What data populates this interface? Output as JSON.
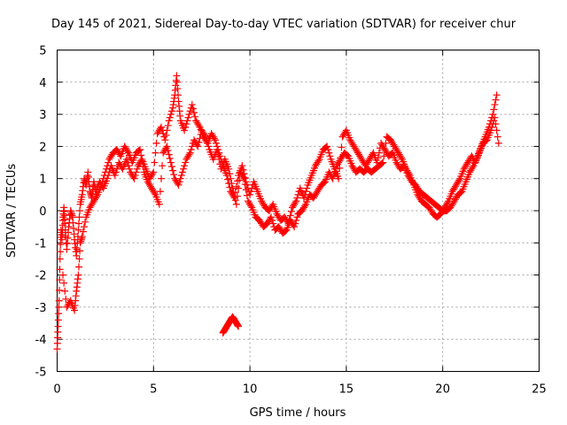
{
  "chart_data": {
    "type": "scatter",
    "title": "Day 145 of 2021, Sidereal Day-to-day VTEC variation (SDTVAR) for receiver chur",
    "xlabel": "GPS time / hours",
    "ylabel": "SDTVAR / TECUs",
    "xlim": [
      0,
      25
    ],
    "ylim": [
      -5,
      5
    ],
    "xticks": [
      0,
      5,
      10,
      15,
      20,
      25
    ],
    "yticks": [
      -5,
      -4,
      -3,
      -2,
      -1,
      0,
      1,
      2,
      3,
      4,
      5
    ],
    "grid": true,
    "marker": "+",
    "color": "#ff0000",
    "series": [
      {
        "name": "SDTVAR",
        "points": [
          [
            0.0,
            -4.3
          ],
          [
            0.05,
            -3.6
          ],
          [
            0.1,
            -2.8
          ],
          [
            0.15,
            -1.5
          ],
          [
            0.2,
            -0.6
          ],
          [
            0.25,
            -0.9
          ],
          [
            0.3,
            -0.3
          ],
          [
            0.35,
            0.1
          ],
          [
            0.4,
            -0.4
          ],
          [
            0.5,
            -1.2
          ],
          [
            0.6,
            -0.5
          ],
          [
            0.7,
            0.0
          ],
          [
            0.8,
            -0.2
          ],
          [
            0.9,
            -0.9
          ],
          [
            1.0,
            -1.4
          ],
          [
            1.1,
            -0.6
          ],
          [
            1.2,
            0.2
          ],
          [
            1.3,
            0.5
          ],
          [
            1.4,
            1.0
          ],
          [
            1.5,
            0.8
          ],
          [
            1.6,
            1.2
          ],
          [
            1.7,
            0.6
          ],
          [
            1.8,
            0.4
          ],
          [
            1.9,
            0.9
          ],
          [
            2.0,
            0.6
          ],
          [
            2.2,
            0.9
          ],
          [
            2.4,
            0.7
          ],
          [
            2.6,
            1.0
          ],
          [
            2.8,
            1.4
          ],
          [
            3.0,
            1.1
          ],
          [
            3.2,
            1.5
          ],
          [
            3.4,
            1.3
          ],
          [
            3.6,
            1.6
          ],
          [
            3.8,
            1.2
          ],
          [
            4.0,
            1.0
          ],
          [
            4.2,
            1.4
          ],
          [
            4.4,
            1.6
          ],
          [
            4.6,
            1.3
          ],
          [
            4.8,
            1.0
          ],
          [
            5.0,
            1.2
          ],
          [
            5.2,
            2.4
          ],
          [
            5.4,
            2.6
          ],
          [
            5.6,
            2.2
          ],
          [
            5.8,
            2.8
          ],
          [
            6.0,
            3.2
          ],
          [
            6.1,
            3.6
          ],
          [
            6.2,
            4.2
          ],
          [
            6.3,
            3.4
          ],
          [
            6.4,
            2.8
          ],
          [
            6.6,
            2.5
          ],
          [
            6.8,
            2.9
          ],
          [
            7.0,
            3.3
          ],
          [
            7.2,
            2.8
          ],
          [
            7.4,
            2.6
          ],
          [
            7.6,
            2.3
          ],
          [
            7.8,
            2.1
          ],
          [
            8.0,
            2.4
          ],
          [
            8.2,
            2.2
          ],
          [
            8.4,
            1.8
          ],
          [
            8.6,
            1.4
          ],
          [
            8.8,
            1.1
          ],
          [
            9.0,
            0.6
          ],
          [
            9.2,
            0.4
          ],
          [
            9.4,
            1.1
          ],
          [
            9.6,
            1.4
          ],
          [
            9.8,
            0.9
          ],
          [
            10.0,
            0.5
          ],
          [
            10.2,
            0.9
          ],
          [
            10.4,
            0.6
          ],
          [
            10.6,
            0.3
          ],
          [
            10.8,
            0.1
          ],
          [
            11.0,
            0.0
          ],
          [
            11.2,
            0.2
          ],
          [
            11.4,
            -0.1
          ],
          [
            11.6,
            -0.3
          ],
          [
            11.8,
            -0.2
          ],
          [
            12.0,
            -0.4
          ],
          [
            12.2,
            0.1
          ],
          [
            12.4,
            0.3
          ],
          [
            12.6,
            0.7
          ],
          [
            12.8,
            0.4
          ],
          [
            13.0,
            0.8
          ],
          [
            13.2,
            1.1
          ],
          [
            13.4,
            1.4
          ],
          [
            13.6,
            1.6
          ],
          [
            13.8,
            1.9
          ],
          [
            14.0,
            2.0
          ],
          [
            14.2,
            1.6
          ],
          [
            14.4,
            1.3
          ],
          [
            14.6,
            1.0
          ],
          [
            14.8,
            2.3
          ],
          [
            15.0,
            2.5
          ],
          [
            15.2,
            2.2
          ],
          [
            15.4,
            2.0
          ],
          [
            15.6,
            1.8
          ],
          [
            15.8,
            1.6
          ],
          [
            16.0,
            1.4
          ],
          [
            16.2,
            1.6
          ],
          [
            16.4,
            1.8
          ],
          [
            16.6,
            1.5
          ],
          [
            16.8,
            2.1
          ],
          [
            17.0,
            1.9
          ],
          [
            17.2,
            1.7
          ],
          [
            17.4,
            1.8
          ],
          [
            17.6,
            1.5
          ],
          [
            17.8,
            1.3
          ],
          [
            18.0,
            1.4
          ],
          [
            18.2,
            1.1
          ],
          [
            18.4,
            0.9
          ],
          [
            18.6,
            0.8
          ],
          [
            18.8,
            0.6
          ],
          [
            19.0,
            0.5
          ],
          [
            19.2,
            0.4
          ],
          [
            19.4,
            0.3
          ],
          [
            19.6,
            0.2
          ],
          [
            19.8,
            0.1
          ],
          [
            20.0,
            0.0
          ],
          [
            20.2,
            0.0
          ],
          [
            20.4,
            0.1
          ],
          [
            20.6,
            0.3
          ],
          [
            20.8,
            0.5
          ],
          [
            21.0,
            0.6
          ],
          [
            21.2,
            0.9
          ],
          [
            21.4,
            1.2
          ],
          [
            21.6,
            1.4
          ],
          [
            21.8,
            1.7
          ],
          [
            22.0,
            2.0
          ],
          [
            22.2,
            2.3
          ],
          [
            22.4,
            2.6
          ],
          [
            22.6,
            3.0
          ],
          [
            22.8,
            3.6
          ],
          [
            0.3,
            -2.0
          ],
          [
            0.5,
            -3.0
          ],
          [
            0.7,
            -2.8
          ],
          [
            0.9,
            -3.1
          ],
          [
            1.0,
            -2.5
          ],
          [
            1.1,
            -2.0
          ],
          [
            1.2,
            -1.0
          ],
          [
            1.3,
            -0.8
          ],
          [
            1.5,
            -0.2
          ],
          [
            1.7,
            0.1
          ],
          [
            1.9,
            0.3
          ],
          [
            2.1,
            0.5
          ],
          [
            2.3,
            0.8
          ],
          [
            2.5,
            1.2
          ],
          [
            2.7,
            1.6
          ],
          [
            2.9,
            1.8
          ],
          [
            3.1,
            1.9
          ],
          [
            3.3,
            1.7
          ],
          [
            3.5,
            2.0
          ],
          [
            3.7,
            1.8
          ],
          [
            3.9,
            1.5
          ],
          [
            4.1,
            1.8
          ],
          [
            4.3,
            1.9
          ],
          [
            4.5,
            1.2
          ],
          [
            4.7,
            0.9
          ],
          [
            4.9,
            0.7
          ],
          [
            5.1,
            0.5
          ],
          [
            5.3,
            0.2
          ],
          [
            5.5,
            1.8
          ],
          [
            5.7,
            2.0
          ],
          [
            5.9,
            1.5
          ],
          [
            6.1,
            1.0
          ],
          [
            6.3,
            0.8
          ],
          [
            6.5,
            1.2
          ],
          [
            6.7,
            1.6
          ],
          [
            6.9,
            1.8
          ],
          [
            7.1,
            2.2
          ],
          [
            7.3,
            2.0
          ],
          [
            7.5,
            2.5
          ],
          [
            7.7,
            2.3
          ],
          [
            7.9,
            1.9
          ],
          [
            8.1,
            1.6
          ],
          [
            8.3,
            1.9
          ],
          [
            8.5,
            1.3
          ],
          [
            8.7,
            1.6
          ],
          [
            8.9,
            1.3
          ],
          [
            9.1,
            0.7
          ],
          [
            9.3,
            0.2
          ],
          [
            9.5,
            1.2
          ],
          [
            9.7,
            1.0
          ],
          [
            9.9,
            0.3
          ],
          [
            10.1,
            0.1
          ],
          [
            10.3,
            -0.2
          ],
          [
            10.5,
            -0.3
          ],
          [
            10.7,
            -0.5
          ],
          [
            10.9,
            -0.4
          ],
          [
            11.1,
            -0.2
          ],
          [
            11.3,
            -0.6
          ],
          [
            11.5,
            -0.5
          ],
          [
            11.7,
            -0.7
          ],
          [
            11.9,
            -0.6
          ],
          [
            12.1,
            -0.3
          ],
          [
            12.3,
            -0.5
          ],
          [
            12.5,
            -0.1
          ],
          [
            12.7,
            0.0
          ],
          [
            12.9,
            0.2
          ],
          [
            13.1,
            0.5
          ],
          [
            13.3,
            0.4
          ],
          [
            13.5,
            0.6
          ],
          [
            13.7,
            0.8
          ],
          [
            13.9,
            0.9
          ],
          [
            14.1,
            1.2
          ],
          [
            14.3,
            1.0
          ],
          [
            14.5,
            1.4
          ],
          [
            14.7,
            1.6
          ],
          [
            14.9,
            1.8
          ],
          [
            15.1,
            1.7
          ],
          [
            15.3,
            1.4
          ],
          [
            15.5,
            1.2
          ],
          [
            15.7,
            1.3
          ],
          [
            15.9,
            1.2
          ],
          [
            16.1,
            1.3
          ],
          [
            16.3,
            1.2
          ],
          [
            16.5,
            1.3
          ],
          [
            16.7,
            1.4
          ],
          [
            16.9,
            1.5
          ],
          [
            17.1,
            2.3
          ],
          [
            17.3,
            2.2
          ],
          [
            17.5,
            2.0
          ],
          [
            17.7,
            1.8
          ],
          [
            17.9,
            1.6
          ],
          [
            18.1,
            1.3
          ],
          [
            18.3,
            1.1
          ],
          [
            18.5,
            0.8
          ],
          [
            18.7,
            0.5
          ],
          [
            18.9,
            0.3
          ],
          [
            19.1,
            0.2
          ],
          [
            19.3,
            0.1
          ],
          [
            19.5,
            -0.1
          ],
          [
            19.7,
            -0.2
          ],
          [
            19.9,
            -0.1
          ],
          [
            20.1,
            0.1
          ],
          [
            20.3,
            0.3
          ],
          [
            20.5,
            0.6
          ],
          [
            20.7,
            0.8
          ],
          [
            20.9,
            1.0
          ],
          [
            21.1,
            1.3
          ],
          [
            21.3,
            1.5
          ],
          [
            21.5,
            1.7
          ],
          [
            21.7,
            1.5
          ],
          [
            21.9,
            1.8
          ],
          [
            22.1,
            2.1
          ],
          [
            22.3,
            2.2
          ],
          [
            22.5,
            2.5
          ],
          [
            22.7,
            2.9
          ],
          [
            22.9,
            2.1
          ],
          [
            8.6,
            -3.8
          ],
          [
            8.7,
            -3.7
          ],
          [
            8.8,
            -3.6
          ],
          [
            8.9,
            -3.5
          ],
          [
            9.0,
            -3.4
          ],
          [
            9.1,
            -3.3
          ],
          [
            9.2,
            -3.4
          ],
          [
            9.3,
            -3.5
          ],
          [
            9.4,
            -3.6
          ]
        ]
      }
    ]
  }
}
